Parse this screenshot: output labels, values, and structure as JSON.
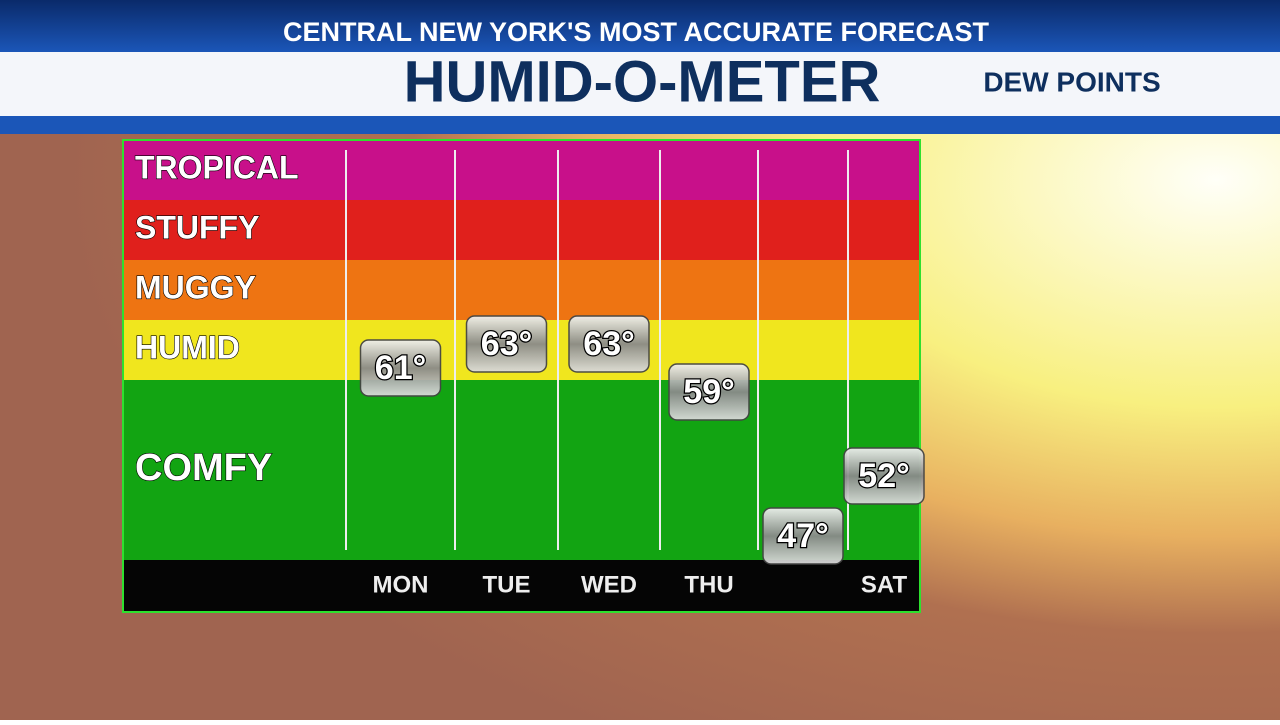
{
  "header": {
    "tagline": "CENTRAL NEW YORK'S MOST ACCURATE FORECAST",
    "title": "HUMID-O-METER",
    "subtitle": "DEW POINTS"
  },
  "chart_data": {
    "type": "meter",
    "categories": [
      "MON",
      "TUE",
      "WED",
      "THU",
      null,
      "SAT"
    ],
    "values": [
      61,
      63,
      63,
      59,
      47,
      52
    ],
    "value_labels": [
      "61°",
      "63°",
      "63°",
      "59°",
      "47°",
      "52°"
    ],
    "ylim": [
      45,
      80
    ],
    "bands": [
      {
        "name": "TROPICAL",
        "color": "#c8108a",
        "from": 75,
        "to": 80
      },
      {
        "name": "STUFFY",
        "color": "#e0201c",
        "from": 70,
        "to": 75
      },
      {
        "name": "MUGGY",
        "color": "#ee7412",
        "from": 65,
        "to": 70
      },
      {
        "name": "HUMID",
        "color": "#f0e61e",
        "from": 60,
        "to": 65
      },
      {
        "name": "COMFY",
        "color": "#12a412",
        "from": 45,
        "to": 60
      }
    ]
  }
}
